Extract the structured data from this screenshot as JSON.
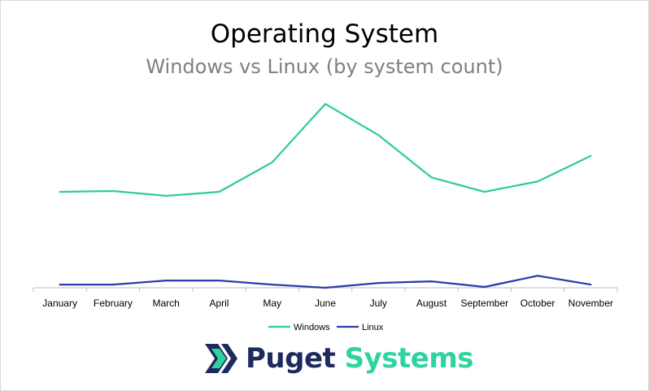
{
  "chart_data": {
    "type": "line",
    "title": "Operating System",
    "subtitle": "Windows vs Linux (by system count)",
    "categories": [
      "January",
      "February",
      "March",
      "April",
      "May",
      "June",
      "July",
      "August",
      "September",
      "October",
      "November"
    ],
    "series": [
      {
        "name": "Windows",
        "color": "#2ecc9a",
        "values": [
          120,
          121,
          115,
          120,
          157,
          230,
          191,
          138,
          120,
          133,
          165
        ]
      },
      {
        "name": "Linux",
        "color": "#2e3ba8",
        "values": [
          4,
          4,
          9,
          9,
          4,
          0,
          6,
          8,
          1,
          15,
          4
        ]
      }
    ],
    "ylim": [
      0,
      240
    ],
    "grid": false,
    "legend_position": "bottom"
  },
  "logo": {
    "word1": "Puget",
    "word2": "Systems"
  },
  "colors": {
    "accent_green": "#2ed3a0",
    "navy": "#1e2a5e"
  }
}
